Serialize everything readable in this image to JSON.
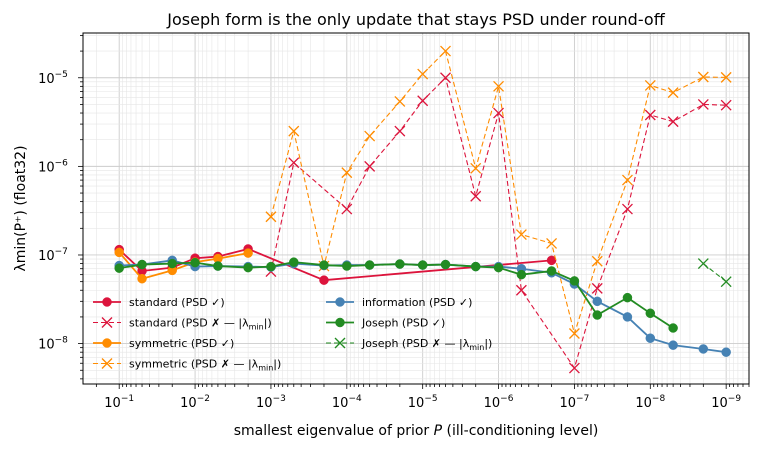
{
  "chart_data": {
    "type": "line",
    "title": "Joseph form is the only update that stays PSD under round-off",
    "xlabel": "smallest eigenvalue of prior P (ill-conditioning level)",
    "ylabel": "λmin(P⁺)  (float32)",
    "xscale": "log",
    "yscale": "log",
    "x_reversed": true,
    "xlim": [
      0.3,
      5e-10
    ],
    "ylim": [
      3.5e-09,
      3.2e-05
    ],
    "grid": true,
    "legend_position": "lower-left",
    "x_ticks": [
      {
        "mant": "10",
        "exp": "−1"
      },
      {
        "mant": "10",
        "exp": "−2"
      },
      {
        "mant": "10",
        "exp": "−3"
      },
      {
        "mant": "10",
        "exp": "−4"
      },
      {
        "mant": "10",
        "exp": "−5"
      },
      {
        "mant": "10",
        "exp": "−6"
      },
      {
        "mant": "10",
        "exp": "−7"
      },
      {
        "mant": "10",
        "exp": "−8"
      },
      {
        "mant": "10",
        "exp": "−9"
      }
    ],
    "y_ticks": [
      {
        "mant": "10",
        "exp": "−8"
      },
      {
        "mant": "10",
        "exp": "−7"
      },
      {
        "mant": "10",
        "exp": "−6"
      },
      {
        "mant": "10",
        "exp": "−5"
      }
    ],
    "series": [
      {
        "name": "standard (PSD ✓)",
        "color": "#dc143c",
        "marker": "circle",
        "dash": false,
        "x": [
          0.1,
          0.05,
          0.02,
          0.01,
          0.005,
          0.002,
          0.0002,
          2e-07
        ],
        "y": [
          1.15e-07,
          6.6e-08,
          7.2e-08,
          9.2e-08,
          9.6e-08,
          1.17e-07,
          5.2e-08,
          8.7e-08
        ]
      },
      {
        "name": "standard  (PSD ✗ — |λmin|)",
        "color": "#dc143c",
        "marker": "x",
        "dash": true,
        "x": [
          0.001,
          0.0005,
          0.0001,
          5e-05,
          2e-05,
          1e-05,
          5e-06,
          2e-06,
          1e-06,
          5e-07,
          1e-07,
          5e-08,
          2e-08,
          1e-08,
          5e-09,
          2e-09,
          1e-09
        ],
        "y": [
          6.5e-08,
          1.1e-06,
          3.3e-07,
          1e-06,
          2.5e-06,
          5.5e-06,
          1e-05,
          4.6e-07,
          4e-06,
          4e-08,
          5.3e-09,
          4.2e-08,
          3.3e-07,
          3.8e-06,
          3.2e-06,
          5e-06,
          4.9e-06
        ]
      },
      {
        "name": "symmetric (PSD ✓)",
        "color": "#ff8c00",
        "marker": "circle",
        "dash": false,
        "x": [
          0.1,
          0.05,
          0.02,
          0.01,
          0.005,
          0.002
        ],
        "y": [
          1.07e-07,
          5.4e-08,
          6.7e-08,
          8.3e-08,
          9.1e-08,
          1.05e-07
        ]
      },
      {
        "name": "symmetric  (PSD ✗ — |λmin|)",
        "color": "#ff8c00",
        "marker": "x",
        "dash": true,
        "x": [
          0.001,
          0.0005,
          0.0002,
          0.0001,
          5e-05,
          2e-05,
          1e-05,
          5e-06,
          2e-06,
          1e-06,
          5e-07,
          2e-07,
          1e-07,
          5e-08,
          2e-08,
          1e-08,
          5e-09,
          2e-09,
          1e-09
        ],
        "y": [
          2.7e-07,
          2.5e-06,
          7.5e-08,
          8.5e-07,
          2.2e-06,
          5.4e-06,
          1.1e-05,
          2e-05,
          9.5e-07,
          8e-06,
          1.7e-07,
          1.35e-07,
          1.3e-08,
          8.5e-08,
          7e-07,
          8.2e-06,
          6.8e-06,
          1.02e-05,
          1.01e-05
        ]
      },
      {
        "name": "information (PSD ✓)",
        "color": "#4682b4",
        "marker": "circle",
        "dash": false,
        "x": [
          0.1,
          0.05,
          0.02,
          0.01,
          0.005,
          0.002,
          0.001,
          0.0005,
          0.0002,
          0.0001,
          5e-05,
          2e-05,
          1e-05,
          5e-06,
          2e-06,
          1e-06,
          5e-07,
          2e-07,
          1e-07,
          5e-08,
          2e-08,
          1e-08,
          5e-09,
          2e-09,
          1e-09
        ],
        "y": [
          7.6e-08,
          7.8e-08,
          8.7e-08,
          7.4e-08,
          7.5e-08,
          7.4e-08,
          7.3e-08,
          8e-08,
          7.6e-08,
          7.7e-08,
          7.7e-08,
          7.9e-08,
          7.7e-08,
          7.8e-08,
          7.4e-08,
          7.4e-08,
          7e-08,
          6.3e-08,
          4.7e-08,
          3e-08,
          2e-08,
          1.15e-08,
          9.6e-09,
          8.7e-09,
          8e-09
        ]
      },
      {
        "name": "Joseph (PSD ✓)",
        "color": "#228b22",
        "marker": "circle",
        "dash": false,
        "x": [
          0.1,
          0.05,
          0.02,
          0.01,
          0.005,
          0.002,
          0.001,
          0.0005,
          0.0002,
          0.0001,
          5e-05,
          2e-05,
          1e-05,
          5e-06,
          2e-06,
          1e-06,
          5e-07,
          2e-07,
          1e-07,
          5e-08,
          2e-08,
          1e-08,
          5e-09
        ],
        "y": [
          7.1e-08,
          7.8e-08,
          8e-08,
          8.2e-08,
          7.5e-08,
          7.2e-08,
          7.4e-08,
          8.3e-08,
          7.7e-08,
          7.5e-08,
          7.7e-08,
          7.9e-08,
          7.7e-08,
          7.8e-08,
          7.4e-08,
          7.2e-08,
          6e-08,
          6.6e-08,
          5.1e-08,
          2.1e-08,
          3.3e-08,
          2.2e-08,
          1.5e-08
        ]
      },
      {
        "name": "Joseph  (PSD ✗ — |λmin|)",
        "color": "#228b22",
        "marker": "x",
        "dash": true,
        "x": [
          2e-09,
          1e-09
        ],
        "y": [
          8e-08,
          5e-08
        ]
      }
    ]
  }
}
